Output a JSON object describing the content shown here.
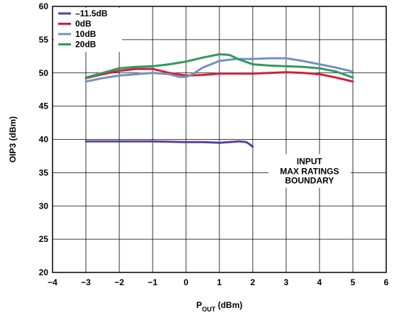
{
  "chart_data": {
    "type": "line",
    "xlabel": {
      "main": "P",
      "sub": "OUT",
      "rest": " (dBm)"
    },
    "ylabel": "OIP3 (dBm)",
    "xlim": [
      -4,
      6
    ],
    "ylim": [
      20,
      60
    ],
    "xticks": [
      -4,
      -3,
      -2,
      -1,
      0,
      1,
      2,
      3,
      4,
      5,
      6
    ],
    "yticks": [
      20,
      25,
      30,
      35,
      40,
      45,
      50,
      55,
      60
    ],
    "grid": true,
    "legend_position": "top-left",
    "series": [
      {
        "name": "–11.5dB",
        "color": "#5b3fa0",
        "x": [
          -3,
          -2.5,
          -2,
          -1.5,
          -1,
          -0.5,
          0,
          0.5,
          1,
          1.3,
          1.6,
          1.8,
          1.9,
          2.0
        ],
        "y": [
          39.7,
          39.7,
          39.7,
          39.7,
          39.7,
          39.65,
          39.6,
          39.6,
          39.5,
          39.6,
          39.7,
          39.6,
          39.3,
          38.9
        ]
      },
      {
        "name": "0dB",
        "color": "#d0203a",
        "x": [
          -3,
          -2.5,
          -2,
          -1.5,
          -1,
          -0.5,
          0,
          0.5,
          1,
          1.5,
          2,
          2.5,
          3,
          3.5,
          4,
          4.5,
          5
        ],
        "y": [
          49.2,
          49.8,
          50.3,
          50.6,
          50.6,
          50.0,
          49.6,
          49.7,
          49.9,
          49.9,
          49.9,
          50.0,
          50.1,
          50.0,
          49.8,
          49.3,
          48.7
        ]
      },
      {
        "name": "10dB",
        "color": "#7590c0",
        "x": [
          -3,
          -2.5,
          -2,
          -1.5,
          -1,
          -0.5,
          -0.2,
          0,
          0.2,
          0.5,
          1,
          1.5,
          2,
          2.5,
          3,
          3.5,
          4,
          4.5,
          5
        ],
        "y": [
          48.7,
          49.2,
          49.6,
          49.8,
          50.0,
          49.8,
          49.4,
          49.4,
          49.8,
          50.8,
          51.8,
          52.1,
          52.1,
          52.2,
          52.2,
          51.8,
          51.3,
          50.8,
          50.2
        ]
      },
      {
        "name": "20dB",
        "color": "#2f9a5f",
        "x": [
          -3,
          -2.5,
          -2,
          -1.5,
          -1,
          -0.5,
          0,
          0.5,
          1,
          1.3,
          1.6,
          2,
          2.5,
          3,
          3.5,
          4,
          4.5,
          5
        ],
        "y": [
          49.3,
          50.0,
          50.7,
          50.9,
          51.0,
          51.3,
          51.7,
          52.3,
          52.8,
          52.7,
          52.0,
          51.3,
          51.1,
          51.0,
          50.9,
          50.7,
          50.2,
          49.3
        ]
      }
    ],
    "annotation": {
      "lines": [
        "INPUT",
        "MAX RATINGS",
        "BOUNDARY"
      ],
      "x": 3.7,
      "y": [
        36.7,
        35.2,
        33.8
      ]
    }
  }
}
